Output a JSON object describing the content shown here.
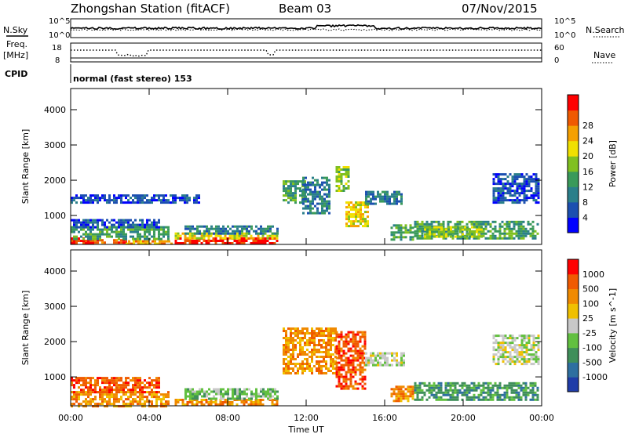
{
  "header": {
    "station": "Zhongshan Station (fitACF)",
    "beam": "Beam 03",
    "date": "07/Nov/2015"
  },
  "mini_panels": {
    "nsky_label": "N.Sky",
    "nsearch_label": "N.Search",
    "freq_label_line1": "Freq.",
    "freq_label_line2": "[MHz]",
    "nave_label": "Nave",
    "cpid_label": "CPID",
    "cpid_text": "normal (fast stereo) 153",
    "nsky_ticks": [
      "10^5",
      "10^0"
    ],
    "nsearch_ticks": [
      "10^5",
      "10^0"
    ],
    "freq_ticks": [
      "18",
      "8"
    ],
    "nave_ticks": [
      "60",
      "0"
    ]
  },
  "chart_data": [
    {
      "type": "heatmap",
      "name": "Power",
      "ylabel": "Slant Range [km]",
      "xlabel": "Time UT",
      "x_ticks": [
        "00:00",
        "04:00",
        "08:00",
        "12:00",
        "16:00",
        "20:00",
        "00:00"
      ],
      "y_ticks": [
        1000,
        2000,
        3000,
        4000
      ],
      "ylim": [
        180,
        4600
      ],
      "xlim_hours": [
        0,
        24
      ],
      "colorbar": {
        "label": "Power [dB]",
        "ticks": [
          "4",
          "8",
          "12",
          "16",
          "20",
          "24",
          "28"
        ],
        "colors": [
          "#0000ff",
          "#1b4fb0",
          "#2a7f8a",
          "#3a9a5a",
          "#80c020",
          "#f0e000",
          "#f5a000",
          "#f05a00",
          "#ff0000"
        ]
      },
      "regions": [
        {
          "t0": 0.0,
          "t1": 1.2,
          "r0": 200,
          "r1": 380,
          "level": 8
        },
        {
          "t0": 1.2,
          "t1": 2.8,
          "r0": 200,
          "r1": 330,
          "level": 7
        },
        {
          "t0": 2.8,
          "t1": 5.3,
          "r0": 200,
          "r1": 300,
          "level": 6
        },
        {
          "t0": 5.3,
          "t1": 10.5,
          "r0": 200,
          "r1": 380,
          "level": 8
        },
        {
          "t0": 5.3,
          "t1": 10.5,
          "r0": 380,
          "r1": 520,
          "level": 5
        },
        {
          "t0": 5.8,
          "t1": 10.5,
          "r0": 520,
          "r1": 720,
          "level": 2
        },
        {
          "t0": 0.0,
          "t1": 5.0,
          "r0": 330,
          "r1": 700,
          "level": 3
        },
        {
          "t0": 0.0,
          "t1": 4.5,
          "r0": 700,
          "r1": 900,
          "level": 1
        },
        {
          "t0": 10.8,
          "t1": 12.0,
          "r0": 1350,
          "r1": 2000,
          "level": 3
        },
        {
          "t0": 11.8,
          "t1": 13.2,
          "r0": 1100,
          "r1": 2100,
          "level": 2
        },
        {
          "t0": 13.5,
          "t1": 14.2,
          "r0": 1700,
          "r1": 2400,
          "level": 4
        },
        {
          "t0": 14.0,
          "t1": 15.2,
          "r0": 700,
          "r1": 1400,
          "level": 5
        },
        {
          "t0": 15.0,
          "t1": 16.8,
          "r0": 1350,
          "r1": 1700,
          "level": 2
        },
        {
          "t0": 16.3,
          "t1": 17.5,
          "r0": 350,
          "r1": 750,
          "level": 3
        },
        {
          "t0": 17.5,
          "t1": 23.8,
          "r0": 350,
          "r1": 850,
          "level": 3
        },
        {
          "t0": 18.0,
          "t1": 21.0,
          "r0": 400,
          "r1": 700,
          "level": 4
        },
        {
          "t0": 21.5,
          "t1": 23.8,
          "r0": 1400,
          "r1": 2200,
          "level": 1
        },
        {
          "t0": 0.0,
          "t1": 6.5,
          "r0": 1400,
          "r1": 1600,
          "level": 1
        }
      ]
    },
    {
      "type": "heatmap",
      "name": "Velocity",
      "ylabel": "Slant Range [km]",
      "xlabel": "Time UT",
      "x_ticks": [
        "00:00",
        "04:00",
        "08:00",
        "12:00",
        "16:00",
        "20:00",
        "00:00"
      ],
      "y_ticks": [
        1000,
        2000,
        3000,
        4000
      ],
      "ylim": [
        180,
        4600
      ],
      "xlim_hours": [
        0,
        24
      ],
      "colorbar": {
        "label": "Velocity [m s^-1]",
        "ticks": [
          "1000",
          "500",
          "100",
          "25",
          "-25",
          "-100",
          "-500",
          "-1000"
        ],
        "colors": [
          "#1f3ca8",
          "#2e6fa0",
          "#3f8f5a",
          "#62c040",
          "#c8c8c8",
          "#f0c000",
          "#f08a00",
          "#f05a00",
          "#ff0000"
        ]
      },
      "regions": [
        {
          "t0": 0.0,
          "t1": 5.0,
          "r0": 200,
          "r1": 600,
          "level": 6
        },
        {
          "t0": 0.0,
          "t1": 4.5,
          "r0": 600,
          "r1": 1000,
          "level": 7
        },
        {
          "t0": 5.3,
          "t1": 10.5,
          "r0": 200,
          "r1": 380,
          "level": 6
        },
        {
          "t0": 5.8,
          "t1": 10.5,
          "r0": 380,
          "r1": 680,
          "level": 3
        },
        {
          "t0": 10.8,
          "t1": 13.5,
          "r0": 1100,
          "r1": 2400,
          "level": 6
        },
        {
          "t0": 13.5,
          "t1": 15.0,
          "r0": 700,
          "r1": 2300,
          "level": 7
        },
        {
          "t0": 15.0,
          "t1": 17.0,
          "r0": 1350,
          "r1": 1700,
          "level": 4
        },
        {
          "t0": 16.3,
          "t1": 17.5,
          "r0": 350,
          "r1": 750,
          "level": 6
        },
        {
          "t0": 17.5,
          "t1": 23.8,
          "r0": 350,
          "r1": 850,
          "level": 2
        },
        {
          "t0": 21.5,
          "t1": 23.8,
          "r0": 1400,
          "r1": 2200,
          "level": 4
        }
      ]
    }
  ]
}
